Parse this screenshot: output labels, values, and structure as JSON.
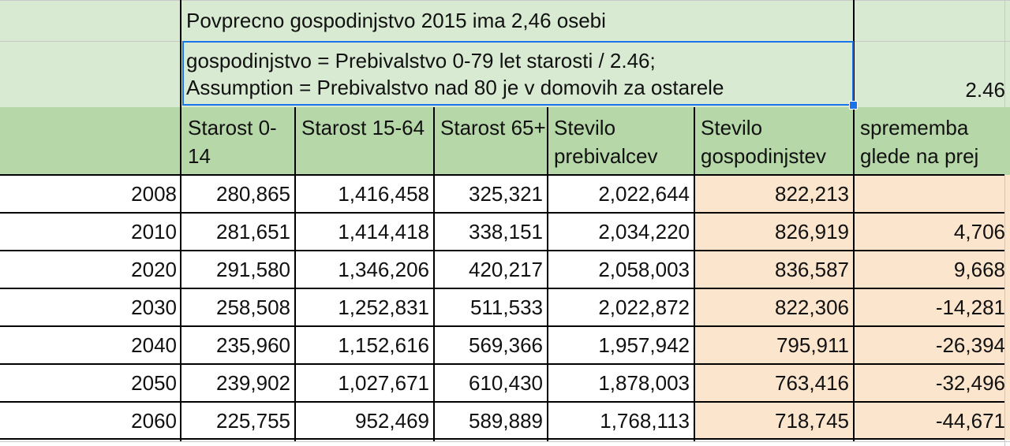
{
  "top_rows": {
    "row1_text": "Povprecno gospodinjstvo 2015 ima 2,46 osebi",
    "row2_line1": "gospodinjstvo = Prebivalstvo 0-79 let starosti / 2.46;",
    "row2_line2": "Assumption = Prebivalstvo nad 80 je v domovih za ostarele",
    "row2_value": "2.46"
  },
  "headers": [
    "Starost 0-14",
    "Starost 15-64",
    "Starost 65+",
    "Stevilo prebivalcev",
    "Stevilo gospodinjstev",
    "sprememba glede na prej"
  ],
  "rows": [
    {
      "year": "2008",
      "c1": "280,865",
      "c2": "1,416,458",
      "c3": "325,321",
      "c4": "2,022,644",
      "c5": "822,213",
      "c6": ""
    },
    {
      "year": "2010",
      "c1": "281,651",
      "c2": "1,414,418",
      "c3": "338,151",
      "c4": "2,034,220",
      "c5": "826,919",
      "c6": "4,706"
    },
    {
      "year": "2020",
      "c1": "291,580",
      "c2": "1,346,206",
      "c3": "420,217",
      "c4": "2,058,003",
      "c5": "836,587",
      "c6": "9,668"
    },
    {
      "year": "2030",
      "c1": "258,508",
      "c2": "1,252,831",
      "c3": "511,533",
      "c4": "2,022,872",
      "c5": "822,306",
      "c6": "-14,281"
    },
    {
      "year": "2040",
      "c1": "235,960",
      "c2": "1,152,616",
      "c3": "569,366",
      "c4": "1,957,942",
      "c5": "795,911",
      "c6": "-26,394"
    },
    {
      "year": "2050",
      "c1": "239,902",
      "c2": "1,027,671",
      "c3": "610,430",
      "c4": "1,878,003",
      "c5": "763,416",
      "c6": "-32,496"
    },
    {
      "year": "2060",
      "c1": "225,755",
      "c2": "952,469",
      "c3": "589,889",
      "c4": "1,768,113",
      "c5": "718,745",
      "c6": "-44,671"
    }
  ],
  "colors": {
    "light_green": "#d9ead3",
    "header_green": "#b6d7a8",
    "peach": "#fce5cd",
    "selection_blue": "#1a73e8"
  }
}
